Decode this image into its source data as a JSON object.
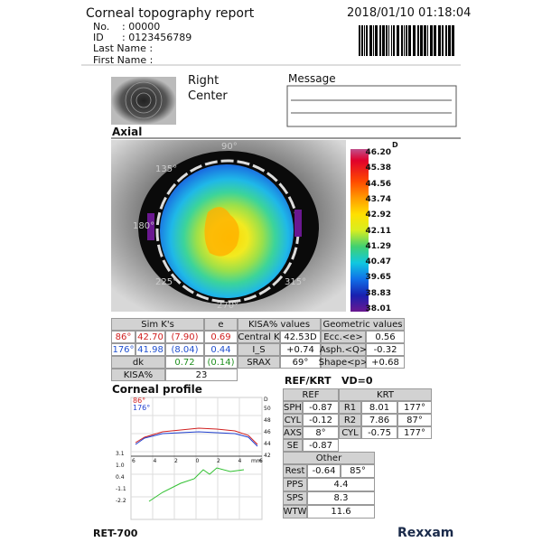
{
  "header": {
    "title": "Corneal topography report",
    "datetime": "2018/01/10 01:18:04",
    "patient": [
      {
        "label": "No.",
        "value": ": 00000"
      },
      {
        "label": "ID",
        "value": ": 0123456789"
      }
    ],
    "name_fields": [
      "Last Name :",
      "First Name :"
    ]
  },
  "eye": {
    "side": "Right",
    "position": "Center"
  },
  "message": {
    "label": "Message"
  },
  "axial": {
    "title": "Axial",
    "unit": "D",
    "scale": [
      "46.20",
      "45.38",
      "44.56",
      "43.74",
      "42.92",
      "42.11",
      "41.29",
      "40.47",
      "39.65",
      "38.83",
      "38.01"
    ],
    "angles": [
      "90°",
      "135°",
      "180°",
      "225°",
      "270°",
      "315°"
    ]
  },
  "simk": {
    "header": [
      "Sim K's",
      "e"
    ],
    "rows": [
      [
        "86°",
        "42.70",
        "(7.90)",
        "0.69"
      ],
      [
        "176°",
        "41.98",
        "(8.04)",
        "0.44"
      ]
    ],
    "dk": [
      "dk",
      "0.72",
      "(0.14)"
    ],
    "kisa": [
      "KISA%",
      "23"
    ]
  },
  "kisa_values": {
    "header": "KISA% values",
    "rows": [
      [
        "Central K",
        "42.53D"
      ],
      [
        "I_S",
        "+0.74"
      ],
      [
        "SRAX",
        "69°"
      ]
    ]
  },
  "geometric": {
    "header": "Geometric values",
    "rows": [
      [
        "Ecc.<e>",
        "0.56"
      ],
      [
        "Asph.<Q>",
        "-0.32"
      ],
      [
        "Shape<p>",
        "+0.68"
      ]
    ]
  },
  "profile": {
    "title": "Corneal profile",
    "legend": [
      "86°",
      "176°"
    ],
    "unit": "D",
    "y_right": [
      "50",
      "48",
      "46",
      "44",
      "42"
    ],
    "x_labels": [
      "6",
      "4",
      "2",
      "0",
      "2",
      "4",
      "6"
    ],
    "mm": "mm",
    "y_left": [
      "3.1",
      "1.0",
      "0.4",
      "-1.1",
      "-2.2"
    ]
  },
  "refkrt": {
    "title": "REF/KRT",
    "vd": "VD=0",
    "ref_header": "REF",
    "krt_header": "KRT",
    "ref_rows": [
      [
        "SPH",
        "-0.87"
      ],
      [
        "CYL",
        "-0.12"
      ],
      [
        "AXS",
        "8°"
      ],
      [
        "SE",
        "-0.87"
      ]
    ],
    "krt_rows": [
      [
        "R1",
        "8.01",
        "177°"
      ],
      [
        "R2",
        "7.86",
        "87°"
      ],
      [
        "CYL",
        "-0.75",
        "177°"
      ]
    ],
    "other_header": "Other",
    "other_rows": [
      [
        "Rest",
        "-0.64",
        "85°"
      ],
      [
        "PPS",
        "4.4"
      ],
      [
        "SPS",
        "8.3"
      ],
      [
        "WTW",
        "11.6"
      ]
    ]
  },
  "footer": {
    "model": "RET-700",
    "brand": "Rexxam"
  }
}
